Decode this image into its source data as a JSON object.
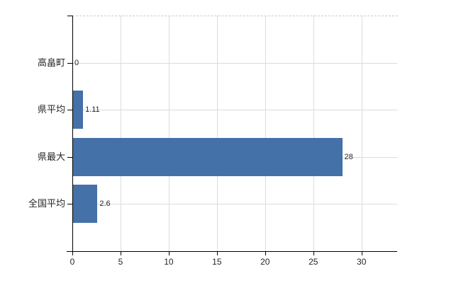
{
  "chart_data": {
    "type": "bar",
    "orientation": "horizontal",
    "title": "",
    "xlabel": "",
    "ylabel": "",
    "categories": [
      "高畠町",
      "県平均",
      "県最大",
      "全国平均"
    ],
    "values": [
      0,
      1.11,
      28,
      2.6
    ],
    "value_labels": [
      "0",
      "1.11",
      "28",
      "2.6"
    ],
    "x_tick_labels": [
      "0",
      "5",
      "10",
      "15",
      "20",
      "25",
      "30"
    ],
    "x_tick_values": [
      0,
      5,
      10,
      15,
      20,
      25,
      30
    ],
    "xlim": [
      0,
      33.7
    ],
    "grid": true,
    "legend_position": "none",
    "colors": {
      "bar": "#4471a7",
      "axis": "#000000",
      "vertical_gridline": "#dcdcdc",
      "horizontal_gridline": "#d8ded8",
      "dashed_top_border": "#c9c9c9",
      "text": "#262626",
      "background": "#ffffff"
    }
  }
}
